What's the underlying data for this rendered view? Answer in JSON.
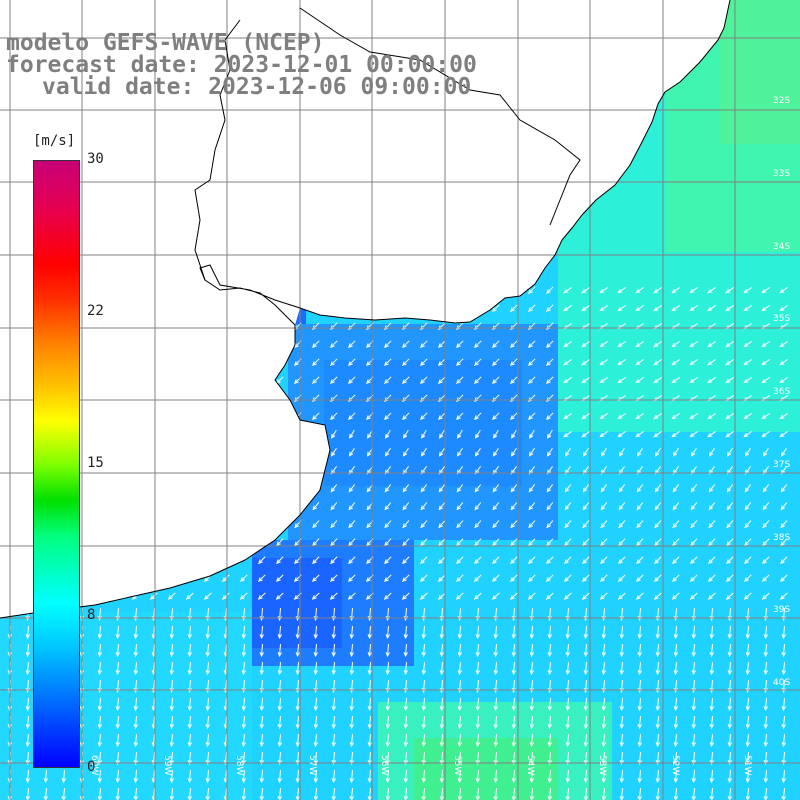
{
  "title": {
    "line1": "modelo GEFS-WAVE (NCEP)",
    "line2": "forecast date: 2023-12-01 00:00:00",
    "line3": "valid date: 2023-12-06 09:00:00"
  },
  "colorbar": {
    "unit": "[m/s]",
    "ticks": [
      {
        "label": "30",
        "value": 30
      },
      {
        "label": "22",
        "value": 22
      },
      {
        "label": "15",
        "value": 15
      },
      {
        "label": "8",
        "value": 8
      },
      {
        "label": "0",
        "value": 0
      }
    ]
  },
  "axes": {
    "lat_labels": [
      "32S",
      "33S",
      "34S",
      "35S",
      "36S",
      "37S",
      "38S",
      "39S",
      "40S"
    ],
    "lon_labels": [
      "60W",
      "59W",
      "58W",
      "57W",
      "56W",
      "55W",
      "54W",
      "53W",
      "52W",
      "51W"
    ]
  },
  "colors": {
    "land": "#ffffff",
    "coastline": "#000000",
    "grid": "#808080",
    "arrows": "#ffffff",
    "title_text": "#7f7f7f"
  }
}
